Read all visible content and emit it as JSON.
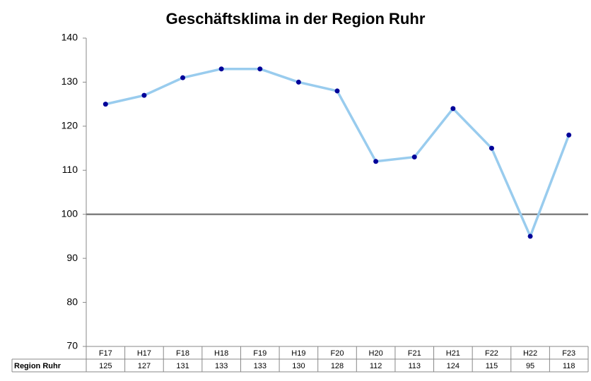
{
  "chart_data": {
    "type": "line",
    "title": "Geschäftsklima in der Region Ruhr",
    "categories": [
      "F17",
      "H17",
      "F18",
      "H18",
      "F19",
      "H19",
      "F20",
      "H20",
      "F21",
      "H21",
      "F22",
      "H22",
      "F23"
    ],
    "series": [
      {
        "name": "Region Ruhr",
        "color": "#99ccee",
        "marker_color": "#000099",
        "values": [
          125,
          127,
          131,
          133,
          133,
          130,
          128,
          112,
          113,
          124,
          115,
          95,
          118
        ]
      }
    ],
    "ylim": [
      70,
      140
    ],
    "yticks": [
      70,
      80,
      90,
      100,
      110,
      120,
      130,
      140
    ],
    "reference_line": 100,
    "grid": false,
    "data_table": true
  }
}
